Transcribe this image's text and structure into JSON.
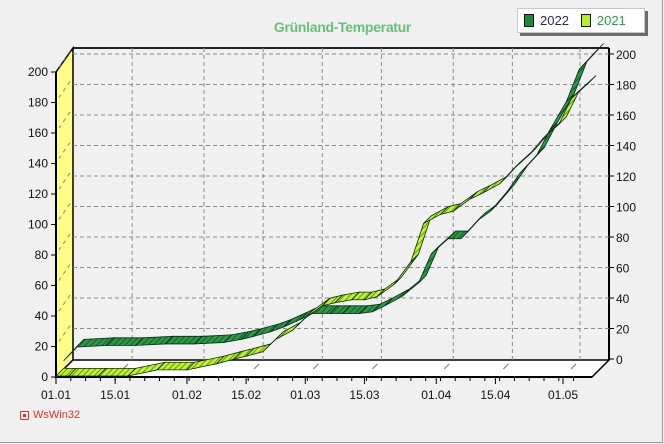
{
  "chart_data": {
    "type": "line",
    "title": "Grünland-Temperatur",
    "xlabel": "",
    "ylabel": "",
    "ylim": [
      0,
      200
    ],
    "y_ticks": [
      0,
      20,
      40,
      60,
      80,
      100,
      120,
      140,
      160,
      180,
      200
    ],
    "x_tick_labels": [
      "01.01",
      "15.01",
      "01.02",
      "15.02",
      "01.03",
      "15.03",
      "01.04",
      "15.04",
      "01.05"
    ],
    "grid": true,
    "legend_position": "top-right",
    "style": "3d-ribbon",
    "x_days": [
      0,
      3,
      10,
      17,
      24,
      31,
      38,
      42,
      45,
      49,
      52,
      56,
      59,
      63,
      66,
      70,
      73,
      76,
      80,
      84,
      87,
      91,
      94,
      98,
      101,
      105,
      108,
      112,
      115,
      119,
      122,
      126
    ],
    "series": [
      {
        "name": "2022",
        "color": "#1e8a3a",
        "values": [
          5,
          14,
          15,
          15,
          16,
          16,
          17,
          19,
          21,
          24,
          27,
          32,
          36,
          36,
          36,
          36,
          37,
          41,
          47,
          56,
          75,
          85,
          85,
          97,
          103,
          116,
          128,
          140,
          156,
          175,
          196,
          208
        ]
      },
      {
        "name": "2021",
        "color": "#a6e81c",
        "values": [
          0,
          0,
          0,
          0,
          4,
          4,
          8,
          11,
          13,
          16,
          24,
          30,
          38,
          46,
          48,
          50,
          50,
          52,
          60,
          75,
          100,
          106,
          108,
          116,
          120,
          126,
          135,
          145,
          155,
          165,
          182,
          192
        ]
      }
    ]
  },
  "legend": {
    "items": [
      {
        "label": "2022",
        "color": "#1e8a3a",
        "text_color": "#2a2a60"
      },
      {
        "label": "2021",
        "color": "#b8f020",
        "text_color": "#22a63c"
      }
    ]
  },
  "credit": {
    "label": "WsWin32"
  }
}
